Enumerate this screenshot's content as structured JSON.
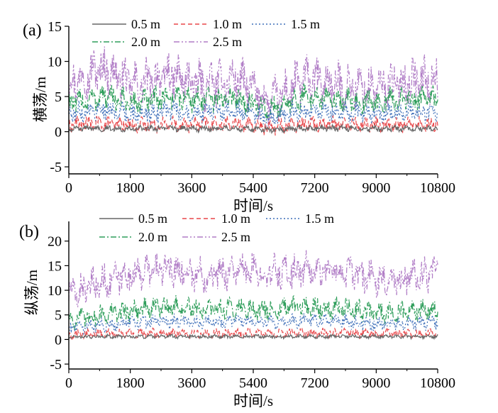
{
  "colors": {
    "0.5 m": "#666666",
    "1.0 m": "#e8474a",
    "1.5 m": "#3d6eb8",
    "2.0 m": "#2f9e5b",
    "2.5 m": "#b07cc6"
  },
  "chart_data": [
    {
      "type": "line",
      "panel_label": "(a)",
      "xlabel": "时间/s",
      "ylabel": "横荡/m",
      "xlim": [
        0,
        10800
      ],
      "ylim": [
        -6,
        15
      ],
      "x_ticks": [
        "0",
        "1800",
        "3600",
        "5400",
        "7200",
        "9000",
        "10800"
      ],
      "y_ticks": [
        "-5",
        "0",
        "5",
        "10",
        "15"
      ],
      "legend": [
        "0.5 m",
        "1.0 m",
        "1.5 m",
        "2.0 m",
        "2.5 m"
      ],
      "series": [
        {
          "name": "0.5 m",
          "values": [
            0.4,
            0.5,
            0.4,
            0.5,
            0.4,
            0.5,
            0.3,
            0.5,
            0.5,
            0.4,
            0.4,
            0.5
          ]
        },
        {
          "name": "1.0 m",
          "values": [
            1.0,
            1.2,
            0.9,
            1.1,
            1.0,
            1.1,
            0.6,
            1.2,
            1.1,
            1.0,
            1.0,
            1.1
          ]
        },
        {
          "name": "1.5 m",
          "values": [
            2.5,
            3.2,
            2.4,
            3.0,
            2.8,
            2.9,
            1.8,
            3.0,
            2.7,
            2.6,
            2.8,
            2.7
          ]
        },
        {
          "name": "2.0 m",
          "values": [
            4.0,
            5.0,
            4.0,
            5.0,
            4.5,
            4.8,
            3.0,
            5.0,
            4.5,
            4.2,
            4.6,
            4.5
          ]
        },
        {
          "name": "2.5 m",
          "values": [
            7.0,
            9.0,
            6.5,
            8.0,
            6.5,
            7.5,
            4.0,
            7.5,
            6.5,
            6.0,
            7.0,
            7.5
          ]
        }
      ]
    },
    {
      "type": "line",
      "panel_label": "(b)",
      "xlabel": "时间/s",
      "ylabel": "纵荡/m",
      "xlim": [
        0,
        10800
      ],
      "ylim": [
        -6,
        24
      ],
      "x_ticks": [
        "0",
        "1800",
        "3600",
        "5400",
        "7200",
        "9000",
        "10800"
      ],
      "y_ticks": [
        "-5",
        "0",
        "5",
        "10",
        "15",
        "20"
      ],
      "legend": [
        "0.5 m",
        "1.0 m",
        "1.5 m",
        "2.0 m",
        "2.5 m"
      ],
      "series": [
        {
          "name": "0.5 m",
          "values": [
            0.5,
            0.6,
            0.6,
            0.6,
            0.6,
            0.6,
            0.6,
            0.6,
            0.6,
            0.6,
            0.6,
            0.6
          ]
        },
        {
          "name": "1.0 m",
          "values": [
            1.0,
            1.2,
            1.3,
            1.3,
            1.2,
            1.3,
            1.2,
            1.3,
            1.3,
            1.2,
            1.2,
            1.2
          ]
        },
        {
          "name": "1.5 m",
          "values": [
            2.5,
            3.0,
            3.5,
            3.8,
            3.5,
            3.8,
            3.5,
            3.8,
            3.8,
            3.2,
            3.2,
            3.5
          ]
        },
        {
          "name": "2.0 m",
          "values": [
            4.0,
            5.0,
            6.0,
            6.8,
            6.0,
            6.5,
            6.0,
            6.5,
            6.5,
            5.5,
            5.5,
            6.0
          ]
        },
        {
          "name": "2.5 m",
          "values": [
            9.0,
            11.5,
            13.5,
            14.5,
            13.0,
            14.0,
            13.5,
            14.0,
            14.0,
            12.5,
            12.5,
            13.5
          ]
        }
      ]
    }
  ]
}
